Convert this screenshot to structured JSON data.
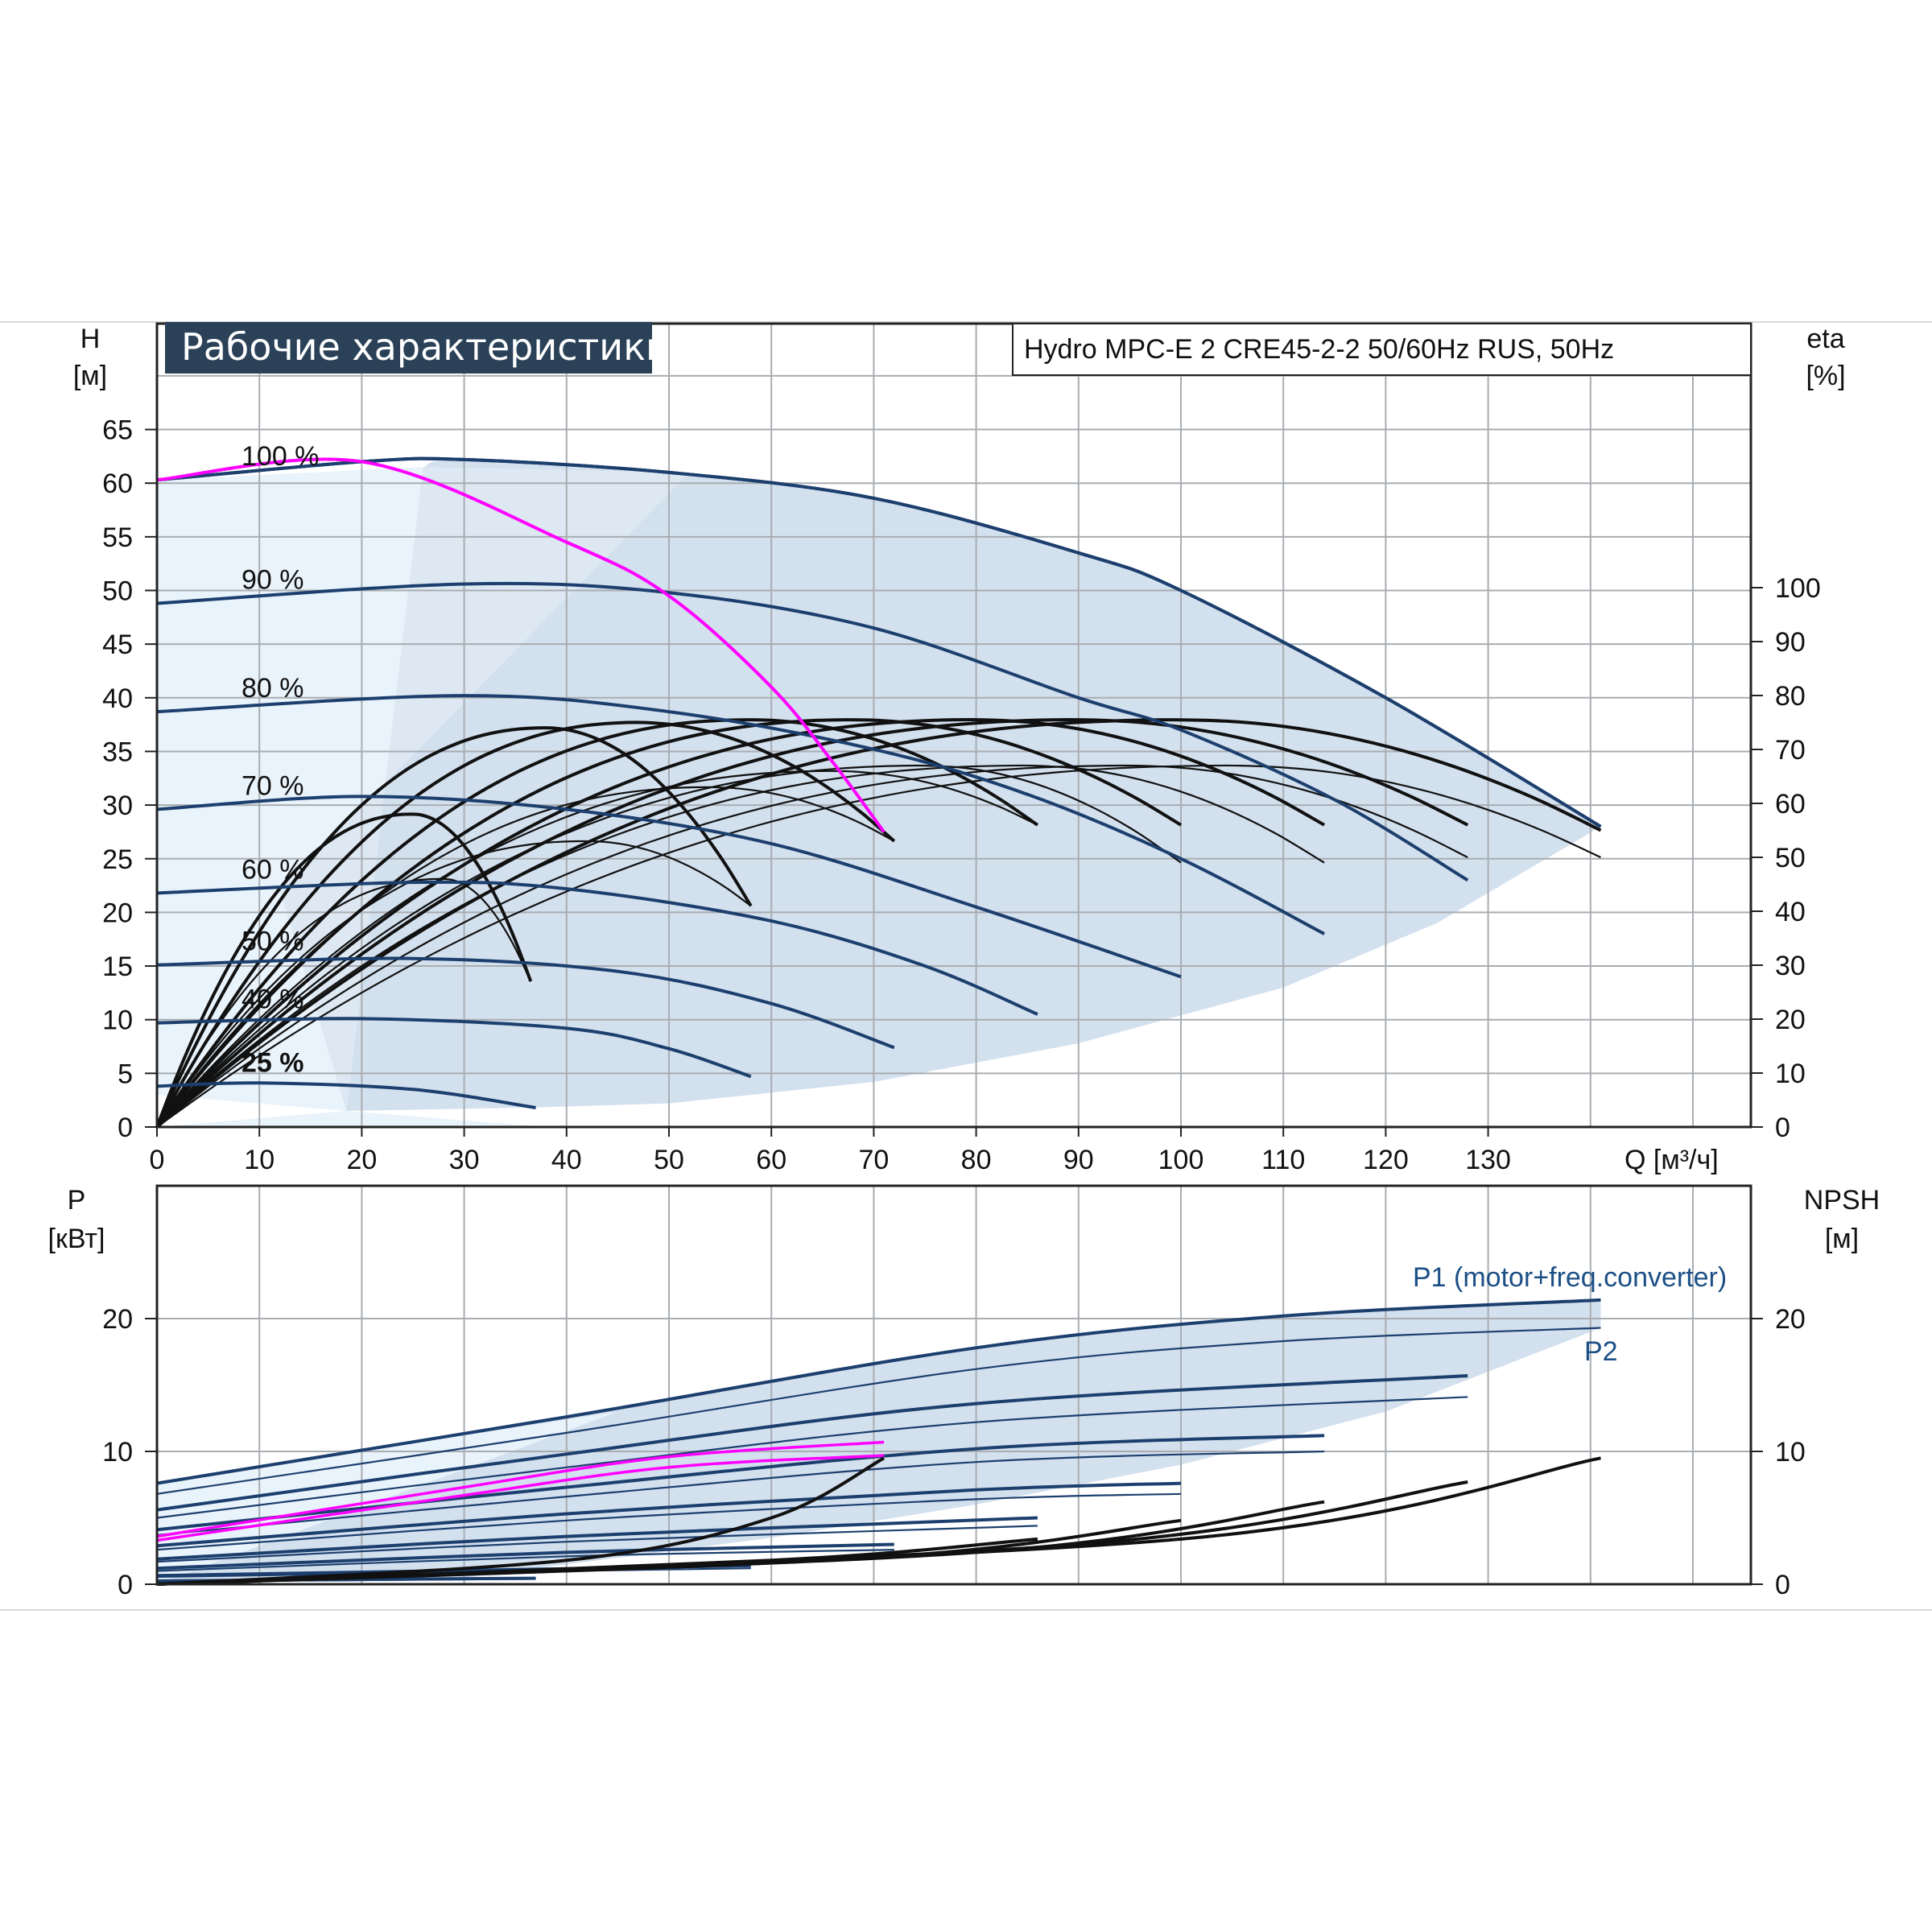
{
  "title": "Рабочие характеристики",
  "model": "Hydro MPC-E 2 CRE45-2-2 50/60Hz RUS, 50Hz",
  "colors": {
    "navy": "#1c3f6e",
    "title_bg": "#2a4158",
    "envelope": "#d3e0ee",
    "envelope_light": "#e9f3fb",
    "grid": "#a9adb1",
    "black": "#111111",
    "magenta": "#ff00ff"
  },
  "top_chart": {
    "left_axis": {
      "label_line1": "H",
      "label_line2": "[м]",
      "ticks": [
        "0",
        "5",
        "10",
        "15",
        "20",
        "25",
        "30",
        "35",
        "40",
        "45",
        "50",
        "55",
        "60",
        "65"
      ]
    },
    "right_axis": {
      "label_line1": "eta",
      "label_line2": "[%]",
      "ticks": [
        "0",
        "10",
        "20",
        "30",
        "40",
        "50",
        "60",
        "70",
        "80",
        "90",
        "100"
      ]
    },
    "x_axis": {
      "label": "Q [м³/ч]",
      "ticks": [
        "0",
        "10",
        "20",
        "30",
        "40",
        "50",
        "60",
        "70",
        "80",
        "90",
        "100",
        "110",
        "120",
        "130"
      ]
    },
    "speed_labels": [
      "100 %",
      "90 %",
      "80 %",
      "70 %",
      "60 %",
      "50 %",
      "40 %",
      "25 %"
    ]
  },
  "bottom_chart": {
    "left_axis": {
      "label_line1": "P",
      "label_line2": "[кВт]",
      "ticks": [
        "0",
        "10",
        "20"
      ]
    },
    "right_axis": {
      "label_line1": "NPSH",
      "label_line2": "[м]",
      "ticks": [
        "0",
        "10",
        "20"
      ]
    },
    "series_labels": {
      "p1": "P1 (motor+freq.converter)",
      "p2": "P2"
    }
  },
  "chart_data": [
    {
      "type": "line",
      "chart": "top",
      "xlabel": "Q [м³/ч]",
      "ylabel": "H [м]",
      "y2label": "eta [%]",
      "xlim": [
        0,
        155
      ],
      "ylim": [
        0,
        65
      ],
      "y2lim": [
        0,
        100
      ],
      "grid": true,
      "head_curves": [
        {
          "speed": "100 %",
          "q_max": 141,
          "points": [
            [
              0,
              60.3
            ],
            [
              20,
              62
            ],
            [
              30,
              62.2
            ],
            [
              50,
              61
            ],
            [
              70,
              58.6
            ],
            [
              90,
              53.5
            ],
            [
              100,
              50
            ],
            [
              120,
              40
            ],
            [
              141,
              28
            ]
          ]
        },
        {
          "speed": "100 %",
          "q_max": 141,
          "points": [
            [
              0,
              60.3
            ],
            [
              20,
              62
            ],
            [
              30,
              62.2
            ],
            [
              50,
              61
            ],
            [
              70,
              58.6
            ],
            [
              90,
              53.5
            ],
            [
              100,
              50
            ],
            [
              120,
              40
            ],
            [
              141,
              28
            ]
          ]
        },
        {
          "speed": "90 %",
          "q_max": 128,
          "points": [
            [
              0,
              48.8
            ],
            [
              30,
              50.6
            ],
            [
              50,
              49.8
            ],
            [
              70,
              46.5
            ],
            [
              90,
              40
            ],
            [
              100,
              37
            ],
            [
              115,
              30.5
            ],
            [
              128,
              23
            ]
          ]
        },
        {
          "speed": "80 %",
          "q_max": 114,
          "points": [
            [
              0,
              38.7
            ],
            [
              30,
              40.2
            ],
            [
              50,
              38.7
            ],
            [
              70,
              35.2
            ],
            [
              85,
              31
            ],
            [
              100,
              25
            ],
            [
              114,
              18
            ]
          ]
        },
        {
          "speed": "70 %",
          "q_max": 100,
          "points": [
            [
              0,
              29.6
            ],
            [
              20,
              30.8
            ],
            [
              40,
              29.6
            ],
            [
              60,
              26.4
            ],
            [
              80,
              20.5
            ],
            [
              100,
              14
            ]
          ]
        },
        {
          "speed": "60 %",
          "q_max": 86,
          "points": [
            [
              0,
              21.8
            ],
            [
              25,
              22.8
            ],
            [
              40,
              22.2
            ],
            [
              60,
              19.2
            ],
            [
              75,
              15
            ],
            [
              86,
              10.5
            ]
          ]
        },
        {
          "speed": "50 %",
          "q_max": 72,
          "points": [
            [
              0,
              15.1
            ],
            [
              25,
              15.7
            ],
            [
              45,
              14.5
            ],
            [
              60,
              11.5
            ],
            [
              72,
              7.4
            ]
          ]
        },
        {
          "speed": "40 %",
          "q_max": 58,
          "points": [
            [
              0,
              9.7
            ],
            [
              20,
              10.1
            ],
            [
              40,
              9.2
            ],
            [
              50,
              7.3
            ],
            [
              58,
              4.7
            ]
          ]
        },
        {
          "speed": "25 %",
          "q_max": 37,
          "points": [
            [
              0,
              3.8
            ],
            [
              10,
              4.1
            ],
            [
              25,
              3.5
            ],
            [
              37,
              1.8
            ]
          ]
        }
      ],
      "system_curve_magenta": {
        "points": [
          [
            0,
            60.3
          ],
          [
            20,
            62
          ],
          [
            40,
            54.5
          ],
          [
            50,
            49.5
          ],
          [
            60,
            41
          ],
          [
            66,
            34
          ],
          [
            71,
            27.5
          ]
        ]
      },
      "efficiency_curves": [
        {
          "q_max": 36.5,
          "eta_peak": 58,
          "q_peak": 25,
          "eta_end": 27
        },
        {
          "q_max": 36.5,
          "eta_peak": 46,
          "q_peak": 28,
          "eta_end": 27
        },
        {
          "q_max": 58,
          "eta_peak": 74,
          "q_peak": 38,
          "eta_end": 41
        },
        {
          "q_max": 58,
          "eta_peak": 53,
          "q_peak": 42,
          "eta_end": 41
        },
        {
          "q_max": 72,
          "eta_peak": 75,
          "q_peak": 47,
          "eta_end": 53
        },
        {
          "q_max": 72,
          "eta_peak": 63,
          "q_peak": 54,
          "eta_end": 53
        },
        {
          "q_max": 86,
          "eta_peak": 75.5,
          "q_peak": 58,
          "eta_end": 56
        },
        {
          "q_max": 86,
          "eta_peak": 66,
          "q_peak": 66,
          "eta_end": 56
        },
        {
          "q_max": 100,
          "eta_peak": 75.5,
          "q_peak": 68,
          "eta_end": 56
        },
        {
          "q_max": 100,
          "eta_peak": 67,
          "q_peak": 75,
          "eta_end": 49
        },
        {
          "q_max": 114,
          "eta_peak": 75.5,
          "q_peak": 80,
          "eta_end": 56
        },
        {
          "q_max": 114,
          "eta_peak": 67,
          "q_peak": 85,
          "eta_end": 49
        },
        {
          "q_max": 128,
          "eta_peak": 75.5,
          "q_peak": 90,
          "eta_end": 56
        },
        {
          "q_max": 128,
          "eta_peak": 67,
          "q_peak": 95,
          "eta_end": 50
        },
        {
          "q_max": 141,
          "eta_peak": 75.5,
          "q_peak": 100,
          "eta_end": 55
        },
        {
          "q_max": 141,
          "eta_peak": 67,
          "q_peak": 105,
          "eta_end": 50
        }
      ]
    },
    {
      "type": "line",
      "chart": "bottom",
      "ylabel": "P [кВт]",
      "y2label": "NPSH [м]",
      "xlim": [
        0,
        155
      ],
      "ylim": [
        0,
        30
      ],
      "grid": true,
      "p1_curves": [
        {
          "q_max": 141,
          "points": [
            [
              0,
              7.6
            ],
            [
              40,
              12.6
            ],
            [
              80,
              17.8
            ],
            [
              110,
              20.2
            ],
            [
              141,
              21.4
            ]
          ]
        },
        {
          "q_max": 128,
          "points": [
            [
              0,
              5.6
            ],
            [
              40,
              9.8
            ],
            [
              80,
              13.6
            ],
            [
              128,
              15.7
            ]
          ]
        },
        {
          "q_max": 114,
          "points": [
            [
              0,
              4.1
            ],
            [
              40,
              7.3
            ],
            [
              80,
              10.2
            ],
            [
              114,
              11.2
            ]
          ]
        },
        {
          "q_max": 100,
          "points": [
            [
              0,
              2.9
            ],
            [
              40,
              5.3
            ],
            [
              80,
              7.1
            ],
            [
              100,
              7.6
            ]
          ]
        },
        {
          "q_max": 86,
          "points": [
            [
              0,
              1.9
            ],
            [
              40,
              3.6
            ],
            [
              86,
              5
            ]
          ]
        },
        {
          "q_max": 72,
          "points": [
            [
              0,
              1.2
            ],
            [
              40,
              2.4
            ],
            [
              72,
              3
            ]
          ]
        },
        {
          "q_max": 58,
          "points": [
            [
              0,
              0.65
            ],
            [
              58,
              1.4
            ]
          ]
        },
        {
          "q_max": 37,
          "points": [
            [
              0,
              0.25
            ],
            [
              37,
              0.45
            ]
          ]
        }
      ],
      "p2_curves": [
        {
          "q_max": 141,
          "points": [
            [
              0,
              6.8
            ],
            [
              40,
              11.4
            ],
            [
              80,
              16.2
            ],
            [
              110,
              18.3
            ],
            [
              141,
              19.3
            ]
          ]
        },
        {
          "q_max": 128,
          "points": [
            [
              0,
              5
            ],
            [
              40,
              8.8
            ],
            [
              80,
              12.2
            ],
            [
              128,
              14.1
            ]
          ]
        },
        {
          "q_max": 114,
          "points": [
            [
              0,
              3.7
            ],
            [
              40,
              6.6
            ],
            [
              80,
              9.2
            ],
            [
              114,
              10
            ]
          ]
        },
        {
          "q_max": 100,
          "points": [
            [
              0,
              2.6
            ],
            [
              40,
              4.8
            ],
            [
              80,
              6.4
            ],
            [
              100,
              6.8
            ]
          ]
        },
        {
          "q_max": 86,
          "points": [
            [
              0,
              1.7
            ],
            [
              40,
              3.2
            ],
            [
              86,
              4.4
            ]
          ]
        },
        {
          "q_max": 72,
          "points": [
            [
              0,
              1
            ],
            [
              40,
              2.1
            ],
            [
              72,
              2.6
            ]
          ]
        },
        {
          "q_max": 58,
          "points": [
            [
              0,
              0.55
            ],
            [
              58,
              1.2
            ]
          ]
        },
        {
          "q_max": 37,
          "points": [
            [
              0,
              0.2
            ],
            [
              37,
              0.4
            ]
          ]
        }
      ],
      "p_magenta": [
        {
          "points": [
            [
              0,
              3.6
            ],
            [
              30,
              7.3
            ],
            [
              50,
              9.6
            ],
            [
              71,
              10.7
            ]
          ]
        },
        {
          "points": [
            [
              0,
              3.3
            ],
            [
              30,
              6.7
            ],
            [
              50,
              8.8
            ],
            [
              71,
              9.7
            ]
          ]
        }
      ],
      "npsh_curves": [
        {
          "q_max": 71,
          "points": [
            [
              0,
              0
            ],
            [
              40,
              1.8
            ],
            [
              60,
              5
            ],
            [
              71,
              9.5
            ]
          ]
        },
        {
          "q_max": 86,
          "points": [
            [
              0,
              0
            ],
            [
              60,
              1.8
            ],
            [
              86,
              3.4
            ]
          ]
        },
        {
          "q_max": 100,
          "points": [
            [
              0,
              0
            ],
            [
              70,
              2
            ],
            [
              100,
              4.8
            ]
          ]
        },
        {
          "q_max": 114,
          "points": [
            [
              0,
              0
            ],
            [
              80,
              2.4
            ],
            [
              114,
              6.2
            ]
          ]
        },
        {
          "q_max": 128,
          "points": [
            [
              0,
              0
            ],
            [
              90,
              3
            ],
            [
              128,
              7.7
            ]
          ]
        },
        {
          "q_max": 141,
          "points": [
            [
              0,
              0
            ],
            [
              100,
              3.4
            ],
            [
              141,
              9.5
            ]
          ]
        }
      ]
    }
  ]
}
